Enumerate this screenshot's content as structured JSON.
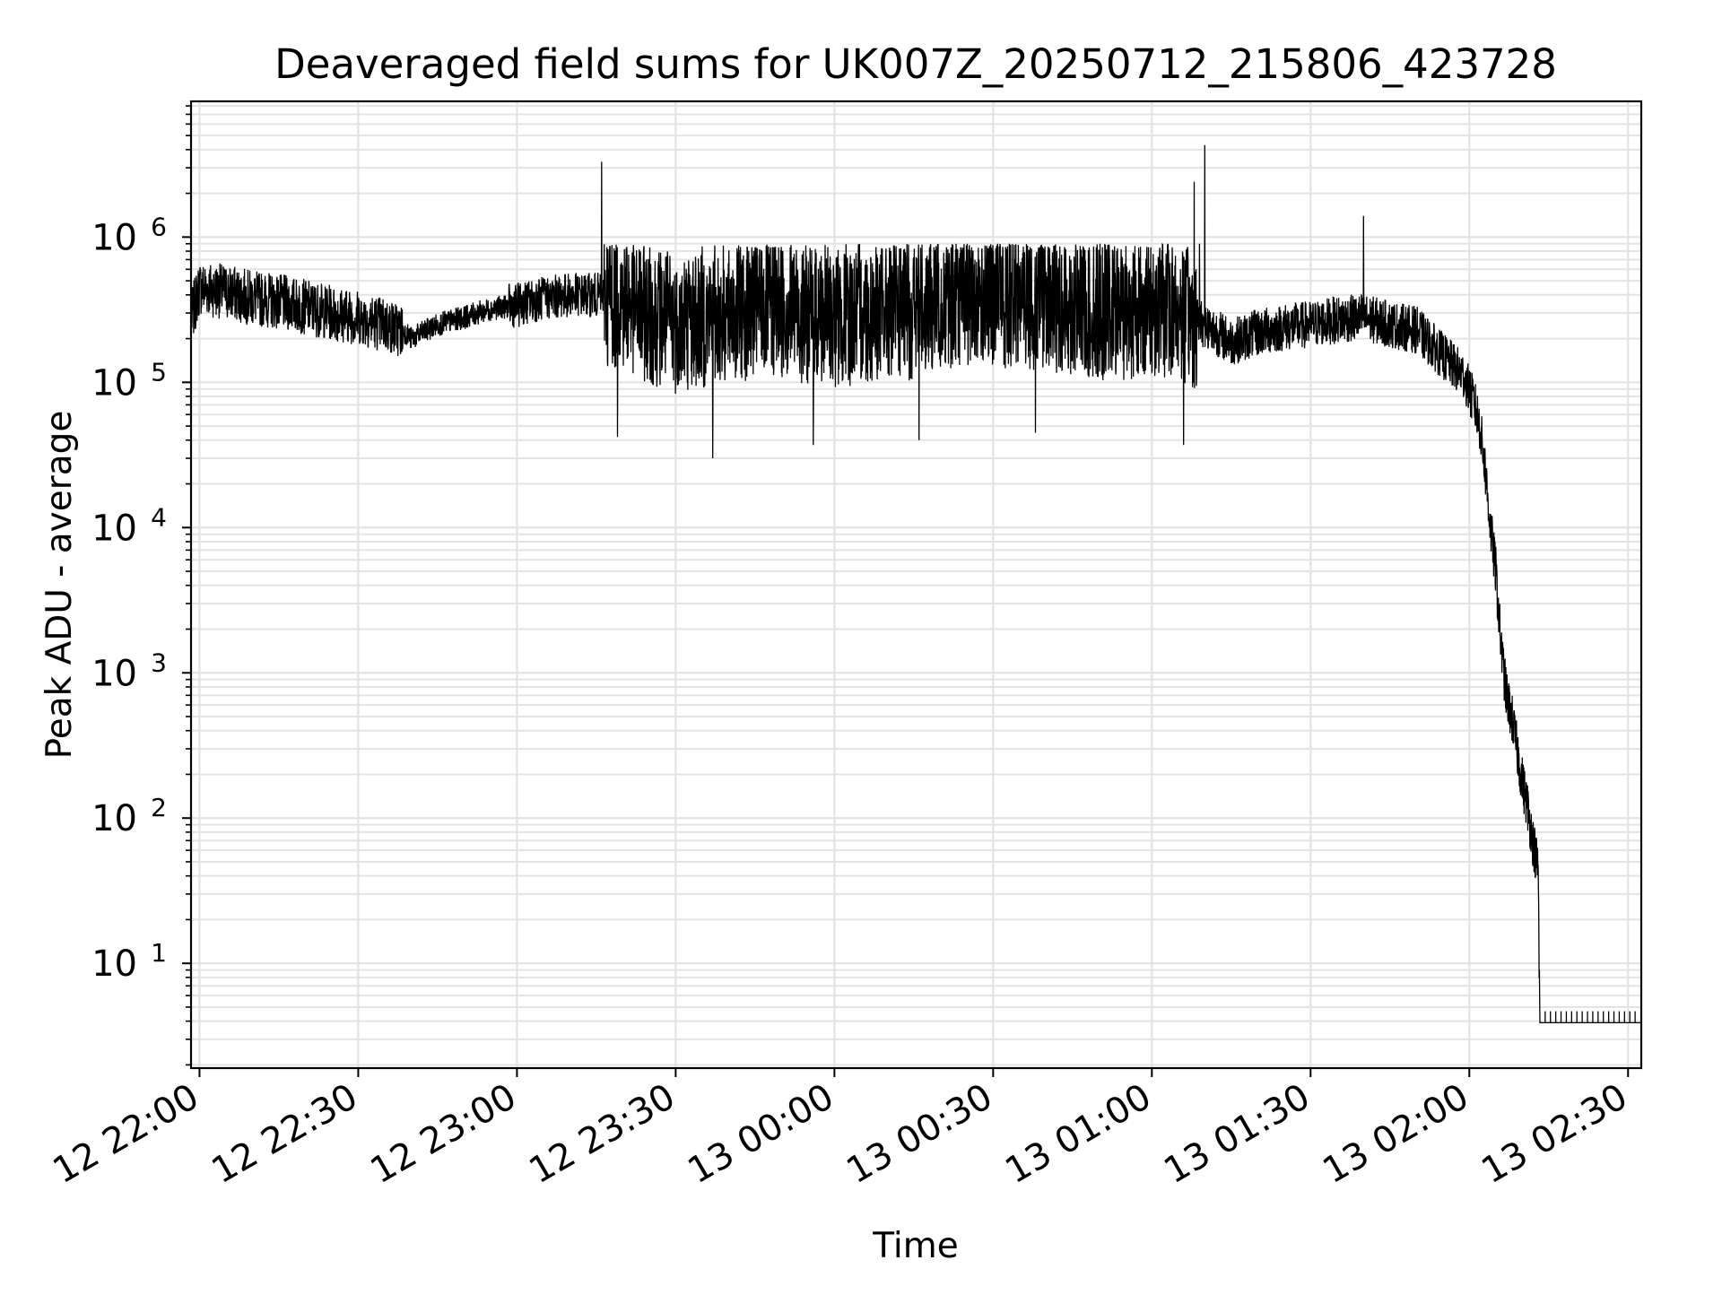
{
  "chart_data": {
    "type": "line",
    "title": "Deaveraged field sums for UK007Z_20250712_215806_423728",
    "xlabel": "Time",
    "ylabel": "Peak ADU - average",
    "x_axis": {
      "kind": "time",
      "range": [
        "2025-07-12 21:58:24",
        "2025-07-13 02:32:30"
      ],
      "tick_values": [
        "2025-07-12 22:00",
        "2025-07-12 22:30",
        "2025-07-12 23:00",
        "2025-07-12 23:30",
        "2025-07-13 00:00",
        "2025-07-13 00:30",
        "2025-07-13 01:00",
        "2025-07-13 01:30",
        "2025-07-13 02:00",
        "2025-07-13 02:30"
      ],
      "tick_labels": [
        "12 22:00",
        "12 22:30",
        "12 23:00",
        "12 23:30",
        "13 00:00",
        "13 00:30",
        "13 01:00",
        "13 01:30",
        "13 02:00",
        "13 02:30"
      ]
    },
    "y_axis": {
      "scale": "log",
      "range": [
        1.9,
        8600000
      ],
      "major_ticks": [
        {
          "value": 10,
          "base": "10",
          "exp": "1"
        },
        {
          "value": 100,
          "base": "10",
          "exp": "2"
        },
        {
          "value": 1000,
          "base": "10",
          "exp": "3"
        },
        {
          "value": 10000,
          "base": "10",
          "exp": "4"
        },
        {
          "value": 100000,
          "base": "10",
          "exp": "5"
        },
        {
          "value": 1000000,
          "base": "10",
          "exp": "6"
        }
      ]
    },
    "grid": true,
    "line_color": "#000000",
    "grid_color": "#e3e3e3",
    "series": [
      {
        "points": [
          [
            "2025-07-12 21:58:30",
            280000
          ],
          [
            "2025-07-12 22:00",
            450000
          ],
          [
            "2025-07-12 22:05",
            420000
          ],
          [
            "2025-07-12 22:10",
            380000
          ],
          [
            "2025-07-12 22:15",
            360000
          ],
          [
            "2025-07-12 22:20",
            330000
          ],
          [
            "2025-07-12 22:25",
            300000
          ],
          [
            "2025-07-12 22:30",
            280000
          ],
          [
            "2025-07-12 22:35",
            250000
          ],
          [
            "2025-07-12 22:39",
            220000
          ],
          [
            "2025-07-12 22:40",
            200000
          ],
          [
            "2025-07-12 22:45",
            250000
          ],
          [
            "2025-07-12 22:50",
            280000
          ],
          [
            "2025-07-12 22:55",
            320000
          ],
          [
            "2025-07-12 23:00",
            340000
          ],
          [
            "2025-07-12 23:05",
            380000
          ],
          [
            "2025-07-12 23:10",
            400000
          ],
          [
            "2025-07-12 23:15",
            400000
          ],
          [
            "2025-07-12 23:20",
            380000
          ],
          [
            "2025-07-12 23:25",
            300000
          ],
          [
            "2025-07-12 23:30",
            260000
          ],
          [
            "2025-07-12 23:35",
            280000
          ],
          [
            "2025-07-12 23:40",
            300000
          ],
          [
            "2025-07-12 23:45",
            330000
          ],
          [
            "2025-07-12 23:50",
            330000
          ],
          [
            "2025-07-12 23:55",
            300000
          ],
          [
            "2025-07-13 00:00",
            280000
          ],
          [
            "2025-07-13 00:05",
            300000
          ],
          [
            "2025-07-13 00:10",
            320000
          ],
          [
            "2025-07-13 00:15",
            320000
          ],
          [
            "2025-07-13 00:20",
            380000
          ],
          [
            "2025-07-13 00:25",
            400000
          ],
          [
            "2025-07-13 00:30",
            400000
          ],
          [
            "2025-07-13 00:35",
            380000
          ],
          [
            "2025-07-13 00:40",
            380000
          ],
          [
            "2025-07-13 00:45",
            340000
          ],
          [
            "2025-07-13 00:50",
            320000
          ],
          [
            "2025-07-13 00:55",
            320000
          ],
          [
            "2025-07-13 01:00",
            330000
          ],
          [
            "2025-07-13 01:05",
            320000
          ],
          [
            "2025-07-13 01:10",
            250000
          ],
          [
            "2025-07-13 01:15",
            190000
          ],
          [
            "2025-07-13 01:20",
            220000
          ],
          [
            "2025-07-13 01:25",
            240000
          ],
          [
            "2025-07-13 01:30",
            250000
          ],
          [
            "2025-07-13 01:35",
            270000
          ],
          [
            "2025-07-13 01:40",
            280000
          ],
          [
            "2025-07-13 01:45",
            250000
          ],
          [
            "2025-07-13 01:50",
            230000
          ],
          [
            "2025-07-13 01:53",
            180000
          ],
          [
            "2025-07-13 01:56",
            140000
          ],
          [
            "2025-07-13 01:59",
            110000
          ],
          [
            "2025-07-13 02:01",
            70000
          ],
          [
            "2025-07-13 02:02",
            50000
          ],
          [
            "2025-07-13 02:03",
            25000
          ],
          [
            "2025-07-13 02:04",
            10000
          ],
          [
            "2025-07-13 02:05",
            5000
          ],
          [
            "2025-07-13 02:06",
            1500
          ],
          [
            "2025-07-13 02:07",
            700
          ],
          [
            "2025-07-13 02:08",
            500
          ],
          [
            "2025-07-13 02:09",
            300
          ],
          [
            "2025-07-13 02:10",
            180
          ],
          [
            "2025-07-13 02:11",
            120
          ],
          [
            "2025-07-13 02:12",
            70
          ],
          [
            "2025-07-13 02:13",
            45
          ],
          [
            "2025-07-13 02:13:20",
            3.9
          ],
          [
            "2025-07-13 02:32:30",
            3.9
          ]
        ]
      }
    ],
    "annotations": {
      "spikes": [
        [
          "2025-07-12 23:16",
          3300000
        ],
        [
          "2025-07-13 01:08",
          2400000
        ],
        [
          "2025-07-13 01:10",
          4300000
        ],
        [
          "2025-07-13 01:40",
          1400000
        ],
        [
          "2025-07-13 01:09",
          900000
        ]
      ],
      "dips": [
        [
          "2025-07-12 23:37",
          30000
        ],
        [
          "2025-07-12 23:56",
          37000
        ],
        [
          "2025-07-13 01:06",
          37000
        ],
        [
          "2025-07-13 00:38",
          45000
        ],
        [
          "2025-07-12 23:19",
          42000
        ],
        [
          "2025-07-13 00:16",
          40000
        ]
      ]
    }
  }
}
